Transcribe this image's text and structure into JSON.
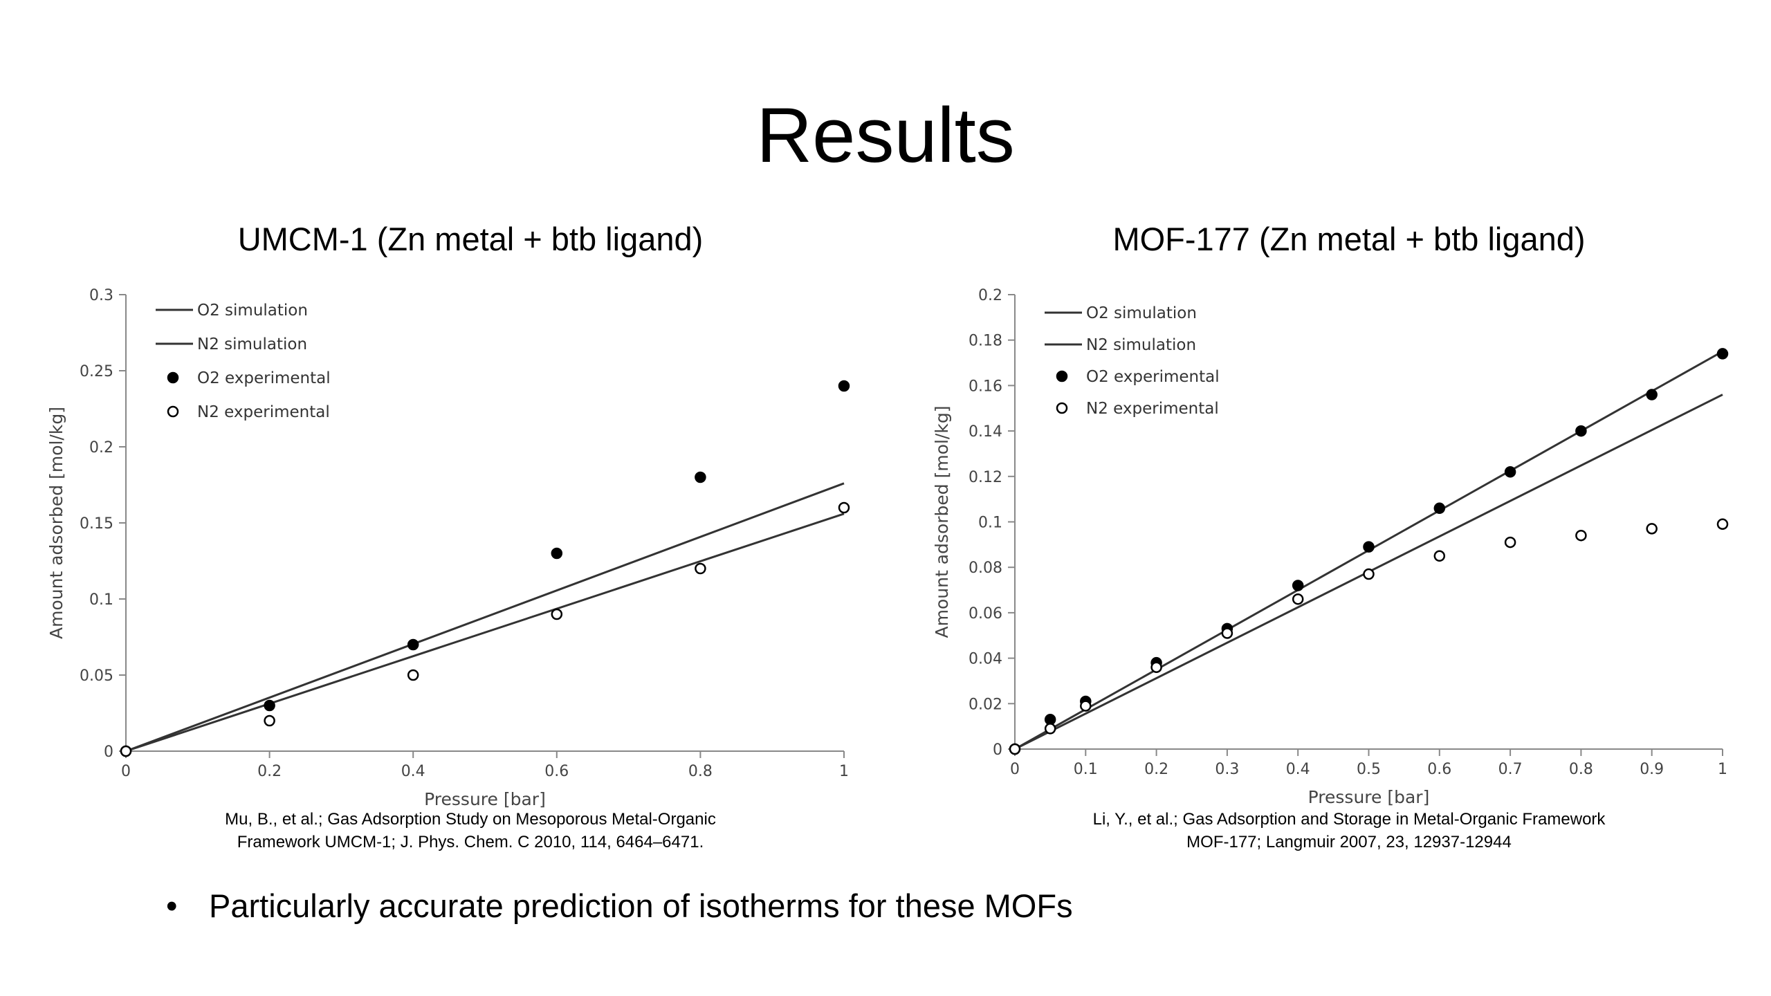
{
  "slide": {
    "title": "Results",
    "bullet": "Particularly accurate prediction of isotherms for these MOFs",
    "bullet_marker": "•"
  },
  "panels": [
    {
      "title": "UMCM-1 (Zn metal + btb ligand)",
      "citation": "Mu, B., et al.; Gas Adsorption Study on Mesoporous Metal-Organic Framework UMCM-1; J. Phys. Chem. C 2010, 114, 6464–6471."
    },
    {
      "title": "MOF-177 (Zn metal + btb ligand)",
      "citation": "Li, Y., et al.; Gas Adsorption and Storage in Metal-Organic Framework MOF-177; Langmuir 2007, 23, 12937-12944"
    }
  ],
  "chart_data": [
    {
      "type": "scatter",
      "xlabel": "Pressure [bar]",
      "ylabel": "Amount adsorbed [mol/kg]",
      "xlim": [
        0,
        1
      ],
      "ylim": [
        0,
        0.3
      ],
      "xticks": [
        "0",
        "0.2",
        "0.4",
        "0.6",
        "0.8",
        "1"
      ],
      "yticks": [
        "0",
        "0.05",
        "0.1",
        "0.15",
        "0.2",
        "0.25",
        "0.3"
      ],
      "grid": false,
      "legend_position": "top-left",
      "series": [
        {
          "name": "O2 simulation",
          "kind": "line",
          "x": [
            0,
            1
          ],
          "y": [
            0,
            0.176
          ]
        },
        {
          "name": "N2 simulation",
          "kind": "line",
          "x": [
            0,
            1
          ],
          "y": [
            0,
            0.156
          ]
        },
        {
          "name": "O2 experimental",
          "kind": "marker-filled",
          "x": [
            0,
            0.2,
            0.4,
            0.6,
            0.8,
            1
          ],
          "y": [
            0,
            0.03,
            0.07,
            0.13,
            0.18,
            0.24
          ]
        },
        {
          "name": "N2 experimental",
          "kind": "marker-open",
          "x": [
            0,
            0.2,
            0.4,
            0.6,
            0.8,
            1
          ],
          "y": [
            0,
            0.02,
            0.05,
            0.09,
            0.12,
            0.16
          ]
        }
      ]
    },
    {
      "type": "scatter",
      "xlabel": "Pressure [bar]",
      "ylabel": "Amount adsorbed [mol/kg]",
      "xlim": [
        0,
        1
      ],
      "ylim": [
        0,
        0.2
      ],
      "xticks": [
        "0",
        "0.1",
        "0.2",
        "0.3",
        "0.4",
        "0.5",
        "0.6",
        "0.7",
        "0.8",
        "0.9",
        "1"
      ],
      "yticks": [
        "0",
        "0.02",
        "0.04",
        "0.06",
        "0.08",
        "0.1",
        "0.12",
        "0.14",
        "0.16",
        "0.18",
        "0.2"
      ],
      "grid": false,
      "legend_position": "top-left",
      "series": [
        {
          "name": "O2 simulation",
          "kind": "line",
          "x": [
            0,
            1
          ],
          "y": [
            0,
            0.175
          ]
        },
        {
          "name": "N2 simulation",
          "kind": "line",
          "x": [
            0,
            1
          ],
          "y": [
            0,
            0.156
          ]
        },
        {
          "name": "O2 experimental",
          "kind": "marker-filled",
          "x": [
            0,
            0.05,
            0.1,
            0.2,
            0.3,
            0.4,
            0.5,
            0.6,
            0.7,
            0.8,
            0.9,
            1
          ],
          "y": [
            0,
            0.013,
            0.021,
            0.038,
            0.053,
            0.072,
            0.089,
            0.106,
            0.122,
            0.14,
            0.156,
            0.174
          ]
        },
        {
          "name": "N2 experimental",
          "kind": "marker-open",
          "x": [
            0,
            0.05,
            0.1,
            0.2,
            0.3,
            0.4,
            0.5,
            0.6,
            0.7,
            0.8,
            0.9,
            1
          ],
          "y": [
            0,
            0.009,
            0.019,
            0.036,
            0.051,
            0.066,
            0.077,
            0.085,
            0.091,
            0.094,
            0.097,
            0.099
          ]
        }
      ]
    }
  ]
}
